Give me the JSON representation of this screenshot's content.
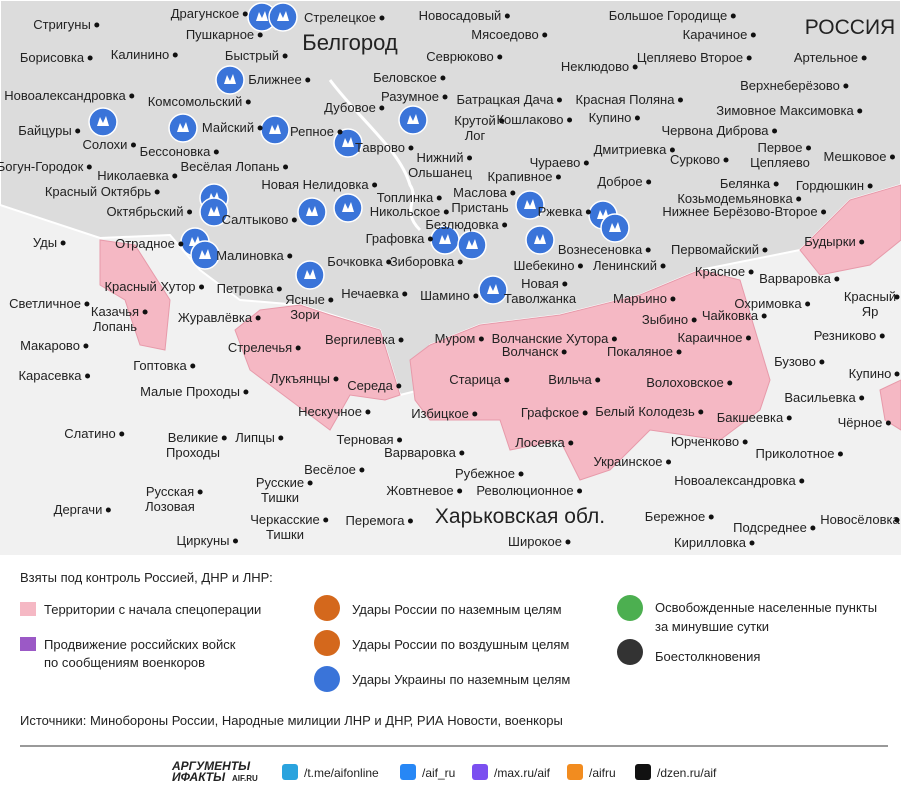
{
  "map": {
    "country_label": "РОССИЯ",
    "city_label": "Белгород",
    "region_label": "Харьковская обл.",
    "places": [
      [
        "Стригуны"
      ],
      [
        "Борисовка"
      ],
      [
        "Калинино"
      ],
      [
        "Драгунское"
      ],
      [
        "Пушкарное"
      ],
      [
        "Стрелецкое"
      ],
      [
        "Новосадовый"
      ],
      [
        "Мясоедово"
      ],
      [
        "Севрюково"
      ],
      [
        "Большое Городище"
      ],
      [
        "Карачиное"
      ],
      [
        "Артельное"
      ],
      [
        "Цепляево Второе"
      ],
      [
        "Неклюдово"
      ],
      [
        "Верхнеберёзово"
      ],
      [
        "Быстрый"
      ],
      [
        "Ближнее"
      ],
      [
        "Беловское"
      ],
      [
        "Новоалександровка"
      ],
      [
        "Комсомольский"
      ],
      [
        "Разумное"
      ],
      [
        "Батрацкая Дача"
      ],
      [
        "Красная Поляна"
      ],
      [
        "Зимовное Максимовка"
      ],
      [
        "Дубовое"
      ],
      [
        "Байцуры"
      ],
      [
        "Солохи"
      ],
      [
        "Майский"
      ],
      [
        "Репное"
      ],
      [
        "Крутой",
        "Лог"
      ],
      [
        "Кошлаково"
      ],
      [
        "Купино"
      ],
      [
        "Червона Диброва"
      ],
      [
        "Бессоновка"
      ],
      [
        "Весёлая Лопань"
      ],
      [
        "Таврово"
      ],
      [
        "Нижний",
        "Ольшанец"
      ],
      [
        "Дмитриевка"
      ],
      [
        "Сурково"
      ],
      [
        "Первое",
        "Цепляево"
      ],
      [
        "Мешковое"
      ],
      [
        "Богун-Городок"
      ],
      [
        "Николаевка"
      ],
      [
        "Чураево"
      ],
      [
        "Крапивное"
      ],
      [
        "Доброе"
      ],
      [
        "Белянка"
      ],
      [
        "Гордюшкин"
      ],
      [
        "Красный Октябрь"
      ],
      [
        "Новая Нелидовка"
      ],
      [
        "Топлинка"
      ],
      [
        "Маслова",
        "Пристань"
      ],
      [
        "Козьмодемьяновка"
      ],
      [
        "Октябрьский"
      ],
      [
        "Салтыково"
      ],
      [
        "Никольское"
      ],
      [
        "Ржевка"
      ],
      [
        "Нижнее Берёзово-Второе"
      ],
      [
        "Безлюдовка"
      ],
      [
        "Уды"
      ],
      [
        "Отрадное"
      ],
      [
        "Графовка"
      ],
      [
        "Вознесеновка"
      ],
      [
        "Первомайский"
      ],
      [
        "Будырки"
      ],
      [
        "Малиновка"
      ],
      [
        "Бочковка"
      ],
      [
        "Зиборовка"
      ],
      [
        "Шебекино"
      ],
      [
        "Ленинский"
      ],
      [
        "Красное"
      ],
      [
        "Варваровка"
      ],
      [
        "Красный Хутор"
      ],
      [
        "Петровка"
      ],
      [
        "Ясные",
        "Зори"
      ],
      [
        "Нечаевка"
      ],
      [
        "Шамино"
      ],
      [
        "Новая",
        "Таволжанка"
      ],
      [
        "Марьино"
      ],
      [
        "Охримовка"
      ],
      [
        "Красный",
        "Яр"
      ],
      [
        "Светличное"
      ],
      [
        "Казачья",
        "Лопань"
      ],
      [
        "Журавлёвка"
      ],
      [
        "Чайковка"
      ],
      [
        "Зыбино"
      ],
      [
        "Резниково"
      ],
      [
        "Вергилевка"
      ],
      [
        "Муром"
      ],
      [
        "Волчанские Хутора"
      ],
      [
        "Караичное"
      ],
      [
        "Макарово"
      ],
      [
        "Стрелечья"
      ],
      [
        "Волчанск"
      ],
      [
        "Покаляное"
      ],
      [
        "Бузово"
      ],
      [
        "Гоптовка"
      ],
      [
        "Купино"
      ],
      [
        "Карасевка"
      ],
      [
        "Лукъянцы"
      ],
      [
        "Середа"
      ],
      [
        "Старица"
      ],
      [
        "Вильча"
      ],
      [
        "Волоховское"
      ],
      [
        "Малые Проходы"
      ],
      [
        "Васильевка"
      ],
      [
        "Нескучное"
      ],
      [
        "Избицкое"
      ],
      [
        "Графское"
      ],
      [
        "Белый Колодезь"
      ],
      [
        "Бакшеевка"
      ],
      [
        "Чёрное"
      ],
      [
        "Слатино"
      ],
      [
        "Великие",
        "Проходы"
      ],
      [
        "Липцы"
      ],
      [
        "Терновая"
      ],
      [
        "Лосевка"
      ],
      [
        "Юрченково"
      ],
      [
        "Варваровка"
      ],
      [
        "Приколотное"
      ],
      [
        "Украинское"
      ],
      [
        "Весёлое"
      ],
      [
        "Рубежное"
      ],
      [
        "Новоалександровка"
      ],
      [
        "Русские",
        "Тишки"
      ],
      [
        "Жовтневое"
      ],
      [
        "Революционное"
      ],
      [
        "Русская",
        "Лозовая"
      ],
      [
        "Дергачи"
      ],
      [
        "Черкасские",
        "Тишки"
      ],
      [
        "Перемога"
      ],
      [
        "Бережное"
      ],
      [
        "Новосёловка"
      ],
      [
        "Подсреднее"
      ],
      [
        "Широкое"
      ],
      [
        "Циркуны"
      ],
      [
        "Кирилловка"
      ]
    ]
  },
  "legend": {
    "title": "Взяты под контроль Россией, ДНР и ЛНР:",
    "territories": "Территории с начала спецоперации",
    "advance": [
      "Продвижение российских войск",
      "по сообщениям военкоров"
    ],
    "russia_ground": "Удары России по наземным целям",
    "russia_air": "Удары России по воздушным целям",
    "ukraine_ground": "Удары Украины по наземным целям",
    "liberated": [
      "Освобожденные населенные пункты",
      "за минувшие сутки"
    ],
    "clashes": "Боестолкновения"
  },
  "sources": "Источники: Минобороны России, Народные милиции ЛНР и ДНР, РИА Новости, военкоры",
  "footer": {
    "logo": [
      "АРГУМЕНТЫ",
      "ИФАКТЫ",
      "AIF.RU"
    ],
    "links": [
      "/t.me/aifonline",
      "/aif_ru",
      "/max.ru/aif",
      "/aifru",
      "/dzen.ru/aif"
    ]
  }
}
